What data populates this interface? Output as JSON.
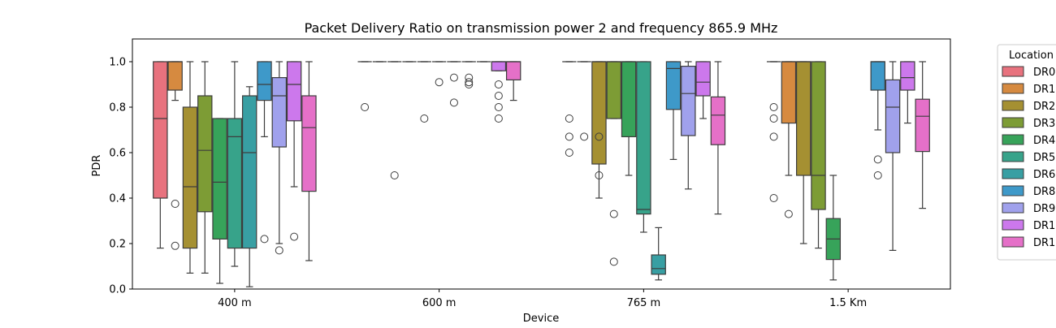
{
  "chart_data": {
    "type": "box",
    "title": "Packet Delivery Ratio on transmission power 2 and frequency 865.9 MHz",
    "xlabel": "Device",
    "ylabel": "PDR",
    "ylim": [
      0,
      1.1
    ],
    "yticks": [
      0.0,
      0.2,
      0.4,
      0.6,
      0.8,
      1.0
    ],
    "ytick_labels": [
      "0.0",
      "0.2",
      "0.4",
      "0.6",
      "0.8",
      "1.0"
    ],
    "categories": [
      "400 m",
      "600 m",
      "765 m",
      "1.5 Km"
    ],
    "legend": {
      "title": "Location",
      "placement": "right-outside-top",
      "entries": [
        {
          "label": "DR0",
          "color": "#e8727e"
        },
        {
          "label": "DR1",
          "color": "#d68a40"
        },
        {
          "label": "DR2",
          "color": "#a59032"
        },
        {
          "label": "DR3",
          "color": "#7d9c35"
        },
        {
          "label": "DR4",
          "color": "#37a35a"
        },
        {
          "label": "DR5",
          "color": "#37a38a"
        },
        {
          "label": "DR6",
          "color": "#389fa3"
        },
        {
          "label": "DR8",
          "color": "#3e99c9"
        },
        {
          "label": "DR9",
          "color": "#a0a1ec"
        },
        {
          "label": "DR1",
          "color": "#cc78ec"
        },
        {
          "label": "DR1",
          "color": "#e570c8"
        }
      ]
    },
    "series": [
      {
        "legend_index": 0,
        "boxes": [
          {
            "category": "400 m",
            "whislo": 0.18,
            "q1": 0.4,
            "med": 0.75,
            "q3": 1.0,
            "whishi": 1.0,
            "fliers": []
          },
          {
            "category": "600 m",
            "whislo": 1.0,
            "q1": 1.0,
            "med": 1.0,
            "q3": 1.0,
            "whishi": 1.0,
            "fliers": [
              0.8
            ]
          },
          {
            "category": "765 m",
            "whislo": 1.0,
            "q1": 1.0,
            "med": 1.0,
            "q3": 1.0,
            "whishi": 1.0,
            "fliers": [
              0.75,
              0.67,
              0.6
            ]
          },
          {
            "category": "1.5 Km",
            "whislo": 1.0,
            "q1": 1.0,
            "med": 1.0,
            "q3": 1.0,
            "whishi": 1.0,
            "fliers": [
              0.8,
              0.75,
              0.67,
              0.4
            ]
          }
        ]
      },
      {
        "legend_index": 1,
        "boxes": [
          {
            "category": "400 m",
            "whislo": 0.83,
            "q1": 0.875,
            "med": 1.0,
            "q3": 1.0,
            "whishi": 1.0,
            "fliers": [
              0.375,
              0.19
            ]
          },
          {
            "category": "600 m",
            "whislo": 1.0,
            "q1": 1.0,
            "med": 1.0,
            "q3": 1.0,
            "whishi": 1.0,
            "fliers": []
          },
          {
            "category": "765 m",
            "whislo": 1.0,
            "q1": 1.0,
            "med": 1.0,
            "q3": 1.0,
            "whishi": 1.0,
            "fliers": [
              0.67
            ]
          },
          {
            "category": "1.5 Km",
            "whislo": 0.5,
            "q1": 0.73,
            "med": 1.0,
            "q3": 1.0,
            "whishi": 1.0,
            "fliers": [
              0.33
            ]
          }
        ]
      },
      {
        "legend_index": 2,
        "boxes": [
          {
            "category": "400 m",
            "whislo": 0.07,
            "q1": 0.18,
            "med": 0.45,
            "q3": 0.8,
            "whishi": 1.0,
            "fliers": []
          },
          {
            "category": "600 m",
            "whislo": 1.0,
            "q1": 1.0,
            "med": 1.0,
            "q3": 1.0,
            "whishi": 1.0,
            "fliers": [
              0.5
            ]
          },
          {
            "category": "765 m",
            "whislo": 0.4,
            "q1": 0.55,
            "med": 1.0,
            "q3": 1.0,
            "whishi": 1.0,
            "fliers": [
              0.67,
              0.5
            ]
          },
          {
            "category": "1.5 Km",
            "whislo": 0.2,
            "q1": 0.5,
            "med": 1.0,
            "q3": 1.0,
            "whishi": 1.0,
            "fliers": []
          }
        ]
      },
      {
        "legend_index": 3,
        "boxes": [
          {
            "category": "400 m",
            "whislo": 0.07,
            "q1": 0.34,
            "med": 0.61,
            "q3": 0.85,
            "whishi": 1.0,
            "fliers": []
          },
          {
            "category": "600 m",
            "whislo": 1.0,
            "q1": 1.0,
            "med": 1.0,
            "q3": 1.0,
            "whishi": 1.0,
            "fliers": []
          },
          {
            "category": "765 m",
            "whislo": 0.75,
            "q1": 0.75,
            "med": 1.0,
            "q3": 1.0,
            "whishi": 1.0,
            "fliers": [
              0.33,
              0.12
            ]
          },
          {
            "category": "1.5 Km",
            "whislo": 0.18,
            "q1": 0.35,
            "med": 0.5,
            "q3": 1.0,
            "whishi": 1.0,
            "fliers": []
          }
        ]
      },
      {
        "legend_index": 4,
        "boxes": [
          {
            "category": "400 m",
            "whislo": 0.025,
            "q1": 0.22,
            "med": 0.47,
            "q3": 0.75,
            "whishi": 0.75,
            "fliers": []
          },
          {
            "category": "600 m",
            "whislo": 1.0,
            "q1": 1.0,
            "med": 1.0,
            "q3": 1.0,
            "whishi": 1.0,
            "fliers": [
              0.75
            ]
          },
          {
            "category": "765 m",
            "whislo": 0.5,
            "q1": 0.67,
            "med": 1.0,
            "q3": 1.0,
            "whishi": 1.0,
            "fliers": []
          },
          {
            "category": "1.5 Km",
            "whislo": 0.04,
            "q1": 0.13,
            "med": 0.22,
            "q3": 0.31,
            "whishi": 0.5,
            "fliers": []
          }
        ]
      },
      {
        "legend_index": 5,
        "boxes": [
          {
            "category": "400 m",
            "whislo": 0.1,
            "q1": 0.18,
            "med": 0.67,
            "q3": 0.75,
            "whishi": 1.0,
            "fliers": []
          },
          {
            "category": "600 m",
            "whislo": 1.0,
            "q1": 1.0,
            "med": 1.0,
            "q3": 1.0,
            "whishi": 1.0,
            "fliers": [
              0.91
            ]
          },
          {
            "category": "765 m",
            "whislo": 0.25,
            "q1": 0.33,
            "med": 0.35,
            "q3": 1.0,
            "whishi": 1.0,
            "fliers": []
          },
          {
            "category": "1.5 Km",
            "whislo": null,
            "q1": null,
            "med": null,
            "q3": null,
            "whishi": null,
            "fliers": []
          }
        ]
      },
      {
        "legend_index": 6,
        "boxes": [
          {
            "category": "400 m",
            "whislo": 0.01,
            "q1": 0.18,
            "med": 0.6,
            "q3": 0.85,
            "whishi": 0.89,
            "fliers": []
          },
          {
            "category": "600 m",
            "whislo": 1.0,
            "q1": 1.0,
            "med": 1.0,
            "q3": 1.0,
            "whishi": 1.0,
            "fliers": [
              0.93,
              0.82
            ]
          },
          {
            "category": "765 m",
            "whislo": 0.04,
            "q1": 0.065,
            "med": 0.09,
            "q3": 0.15,
            "whishi": 0.27,
            "fliers": []
          },
          {
            "category": "1.5 Km",
            "whislo": null,
            "q1": null,
            "med": null,
            "q3": null,
            "whishi": null,
            "fliers": []
          }
        ]
      },
      {
        "legend_index": 7,
        "boxes": [
          {
            "category": "400 m",
            "whislo": 0.67,
            "q1": 0.83,
            "med": 0.9,
            "q3": 1.0,
            "whishi": 1.0,
            "fliers": [
              0.22
            ]
          },
          {
            "category": "600 m",
            "whislo": 1.0,
            "q1": 1.0,
            "med": 1.0,
            "q3": 1.0,
            "whishi": 1.0,
            "fliers": [
              0.93,
              0.91,
              0.9
            ]
          },
          {
            "category": "765 m",
            "whislo": 0.57,
            "q1": 0.79,
            "med": 0.97,
            "q3": 1.0,
            "whishi": 1.0,
            "fliers": []
          },
          {
            "category": "1.5 Km",
            "whislo": 0.7,
            "q1": 0.875,
            "med": 1.0,
            "q3": 1.0,
            "whishi": 1.0,
            "fliers": [
              0.57,
              0.5
            ]
          }
        ]
      },
      {
        "legend_index": 8,
        "boxes": [
          {
            "category": "400 m",
            "whislo": 0.2,
            "q1": 0.625,
            "med": 0.85,
            "q3": 0.93,
            "whishi": 1.0,
            "fliers": [
              0.17
            ]
          },
          {
            "category": "600 m",
            "whislo": 1.0,
            "q1": 1.0,
            "med": 1.0,
            "q3": 1.0,
            "whishi": 1.0,
            "fliers": []
          },
          {
            "category": "765 m",
            "whislo": 0.44,
            "q1": 0.675,
            "med": 0.86,
            "q3": 0.98,
            "whishi": 1.0,
            "fliers": []
          },
          {
            "category": "1.5 Km",
            "whislo": 0.17,
            "q1": 0.6,
            "med": 0.8,
            "q3": 0.92,
            "whishi": 1.0,
            "fliers": []
          }
        ]
      },
      {
        "legend_index": 9,
        "boxes": [
          {
            "category": "400 m",
            "whislo": 0.45,
            "q1": 0.74,
            "med": 0.9,
            "q3": 1.0,
            "whishi": 1.0,
            "fliers": [
              0.23
            ]
          },
          {
            "category": "600 m",
            "whislo": 0.96,
            "q1": 0.96,
            "med": 1.0,
            "q3": 1.0,
            "whishi": 1.0,
            "fliers": [
              0.9,
              0.85,
              0.8,
              0.75
            ]
          },
          {
            "category": "765 m",
            "whislo": 0.75,
            "q1": 0.85,
            "med": 0.91,
            "q3": 1.0,
            "whishi": 1.0,
            "fliers": []
          },
          {
            "category": "1.5 Km",
            "whislo": 0.73,
            "q1": 0.875,
            "med": 0.93,
            "q3": 1.0,
            "whishi": 1.0,
            "fliers": []
          }
        ]
      },
      {
        "legend_index": 10,
        "boxes": [
          {
            "category": "400 m",
            "whislo": 0.125,
            "q1": 0.43,
            "med": 0.71,
            "q3": 0.85,
            "whishi": 1.0,
            "fliers": []
          },
          {
            "category": "600 m",
            "whislo": 0.83,
            "q1": 0.92,
            "med": 1.0,
            "q3": 1.0,
            "whishi": 1.0,
            "fliers": []
          },
          {
            "category": "765 m",
            "whislo": 0.33,
            "q1": 0.635,
            "med": 0.765,
            "q3": 0.845,
            "whishi": 1.0,
            "fliers": []
          },
          {
            "category": "1.5 Km",
            "whislo": 0.355,
            "q1": 0.605,
            "med": 0.76,
            "q3": 0.835,
            "whishi": 1.0,
            "fliers": []
          }
        ]
      }
    ],
    "grid": false
  }
}
